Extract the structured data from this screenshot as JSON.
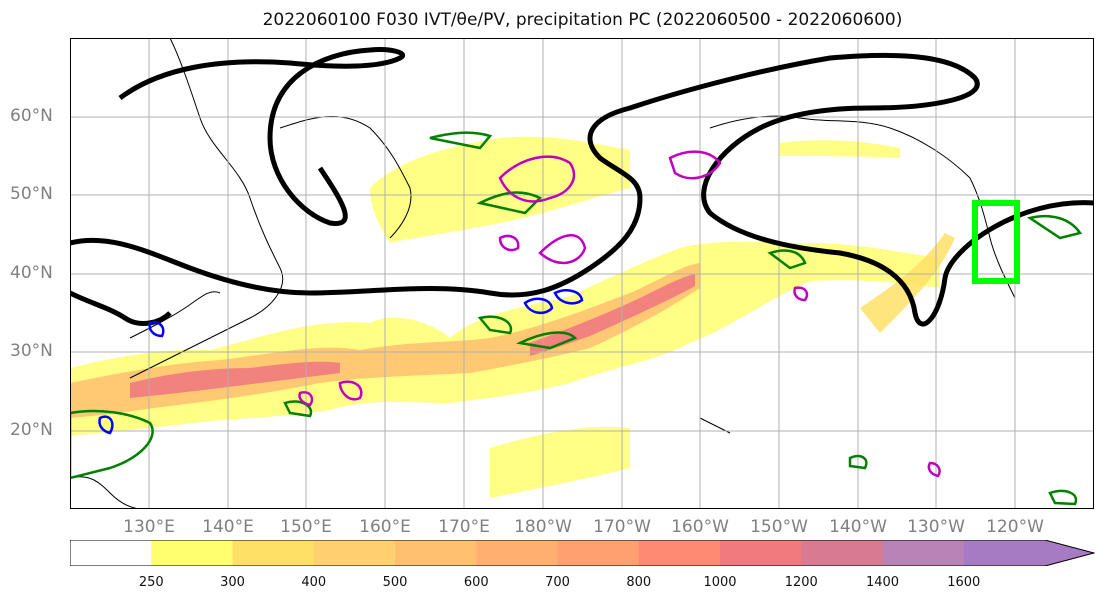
{
  "title": "2022060100 F030 IVT/θe/PV, precipitation PC (2022060500 - 2022060600)",
  "latitude_labels": [
    "60°N",
    "50°N",
    "40°N",
    "30°N",
    "20°N"
  ],
  "longitude_labels": [
    "130°E",
    "140°E",
    "150°E",
    "160°E",
    "170°E",
    "180°W",
    "170°W",
    "160°W",
    "150°W",
    "140°W",
    "130°W",
    "120°W"
  ],
  "colorbar": {
    "ticks": [
      "250",
      "300",
      "400",
      "500",
      "600",
      "700",
      "800",
      "1000",
      "1200",
      "1400",
      "1600"
    ],
    "colors": [
      "#ffffff",
      "#ffff70",
      "#ffe066",
      "#ffd070",
      "#ffc070",
      "#ffb070",
      "#ffa070",
      "#ff8a72",
      "#f07a7e",
      "#d87a90",
      "#b884b8",
      "#a77bc4"
    ]
  },
  "highlight_color": "#00ff00",
  "contour_colors": {
    "ivt": "#000000",
    "theta_e": "#008000",
    "pv_positive": "#c000c0",
    "pv_negative": "#0000ff"
  }
}
